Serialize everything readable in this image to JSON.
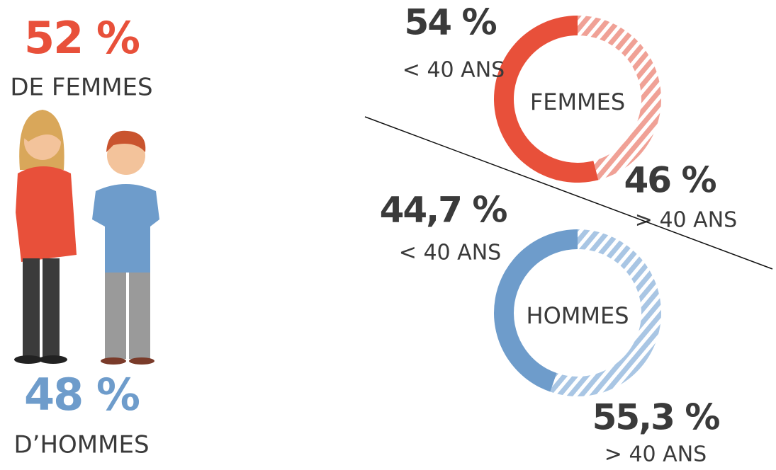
{
  "summary": {
    "women": {
      "share": "52 %",
      "caption": "DE FEMMES"
    },
    "men": {
      "share": "48 %",
      "caption": "D’HOMMES"
    }
  },
  "chart_data": [
    {
      "type": "donut",
      "title": "FEMMES",
      "categories": [
        "< 40 ANS",
        "> 40 ANS"
      ],
      "values": [
        54,
        46
      ],
      "value_labels": [
        "54 %",
        "46 %"
      ],
      "colors": [
        "#e8503a",
        "#f0a196"
      ],
      "hatched": [
        false,
        true
      ]
    },
    {
      "type": "donut",
      "title": "HOMMES",
      "categories": [
        "< 40 ANS",
        "> 40 ANS"
      ],
      "values": [
        44.7,
        55.3
      ],
      "value_labels": [
        "44,7 %",
        "55,3 %"
      ],
      "colors": [
        "#6e9ccb",
        "#a9c6e4"
      ],
      "hatched": [
        false,
        true
      ]
    }
  ]
}
